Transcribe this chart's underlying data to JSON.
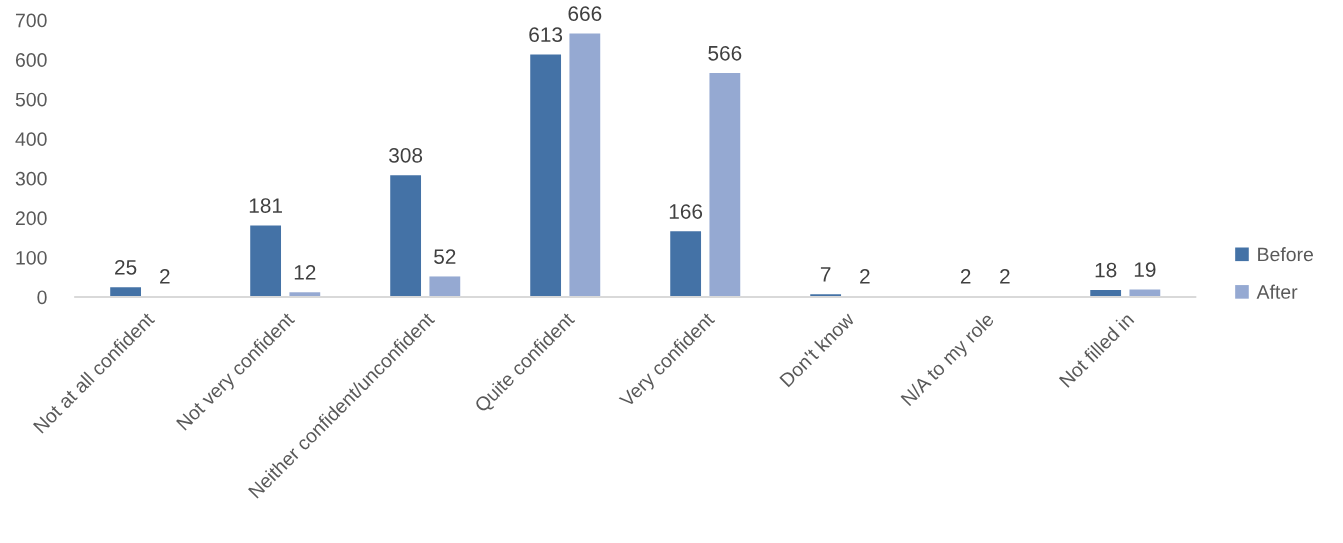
{
  "chart_data": {
    "type": "bar",
    "categories": [
      "Not at all confident",
      "Not very confident",
      "Neither confident/unconfident",
      "Quite confident",
      "Very confident",
      "Don't know",
      "N/A to my role",
      "Not filled in"
    ],
    "series": [
      {
        "name": "Before",
        "color": "#4472a6",
        "values": [
          25,
          181,
          308,
          613,
          166,
          7,
          2,
          18
        ]
      },
      {
        "name": "After",
        "color": "#95a9d2",
        "values": [
          2,
          12,
          52,
          666,
          566,
          2,
          2,
          19
        ]
      }
    ],
    "ylim": [
      0,
      700
    ],
    "yticks": [
      0,
      100,
      200,
      300,
      400,
      500,
      600,
      700
    ],
    "grid": false,
    "legend": "right",
    "data_labels": true
  }
}
